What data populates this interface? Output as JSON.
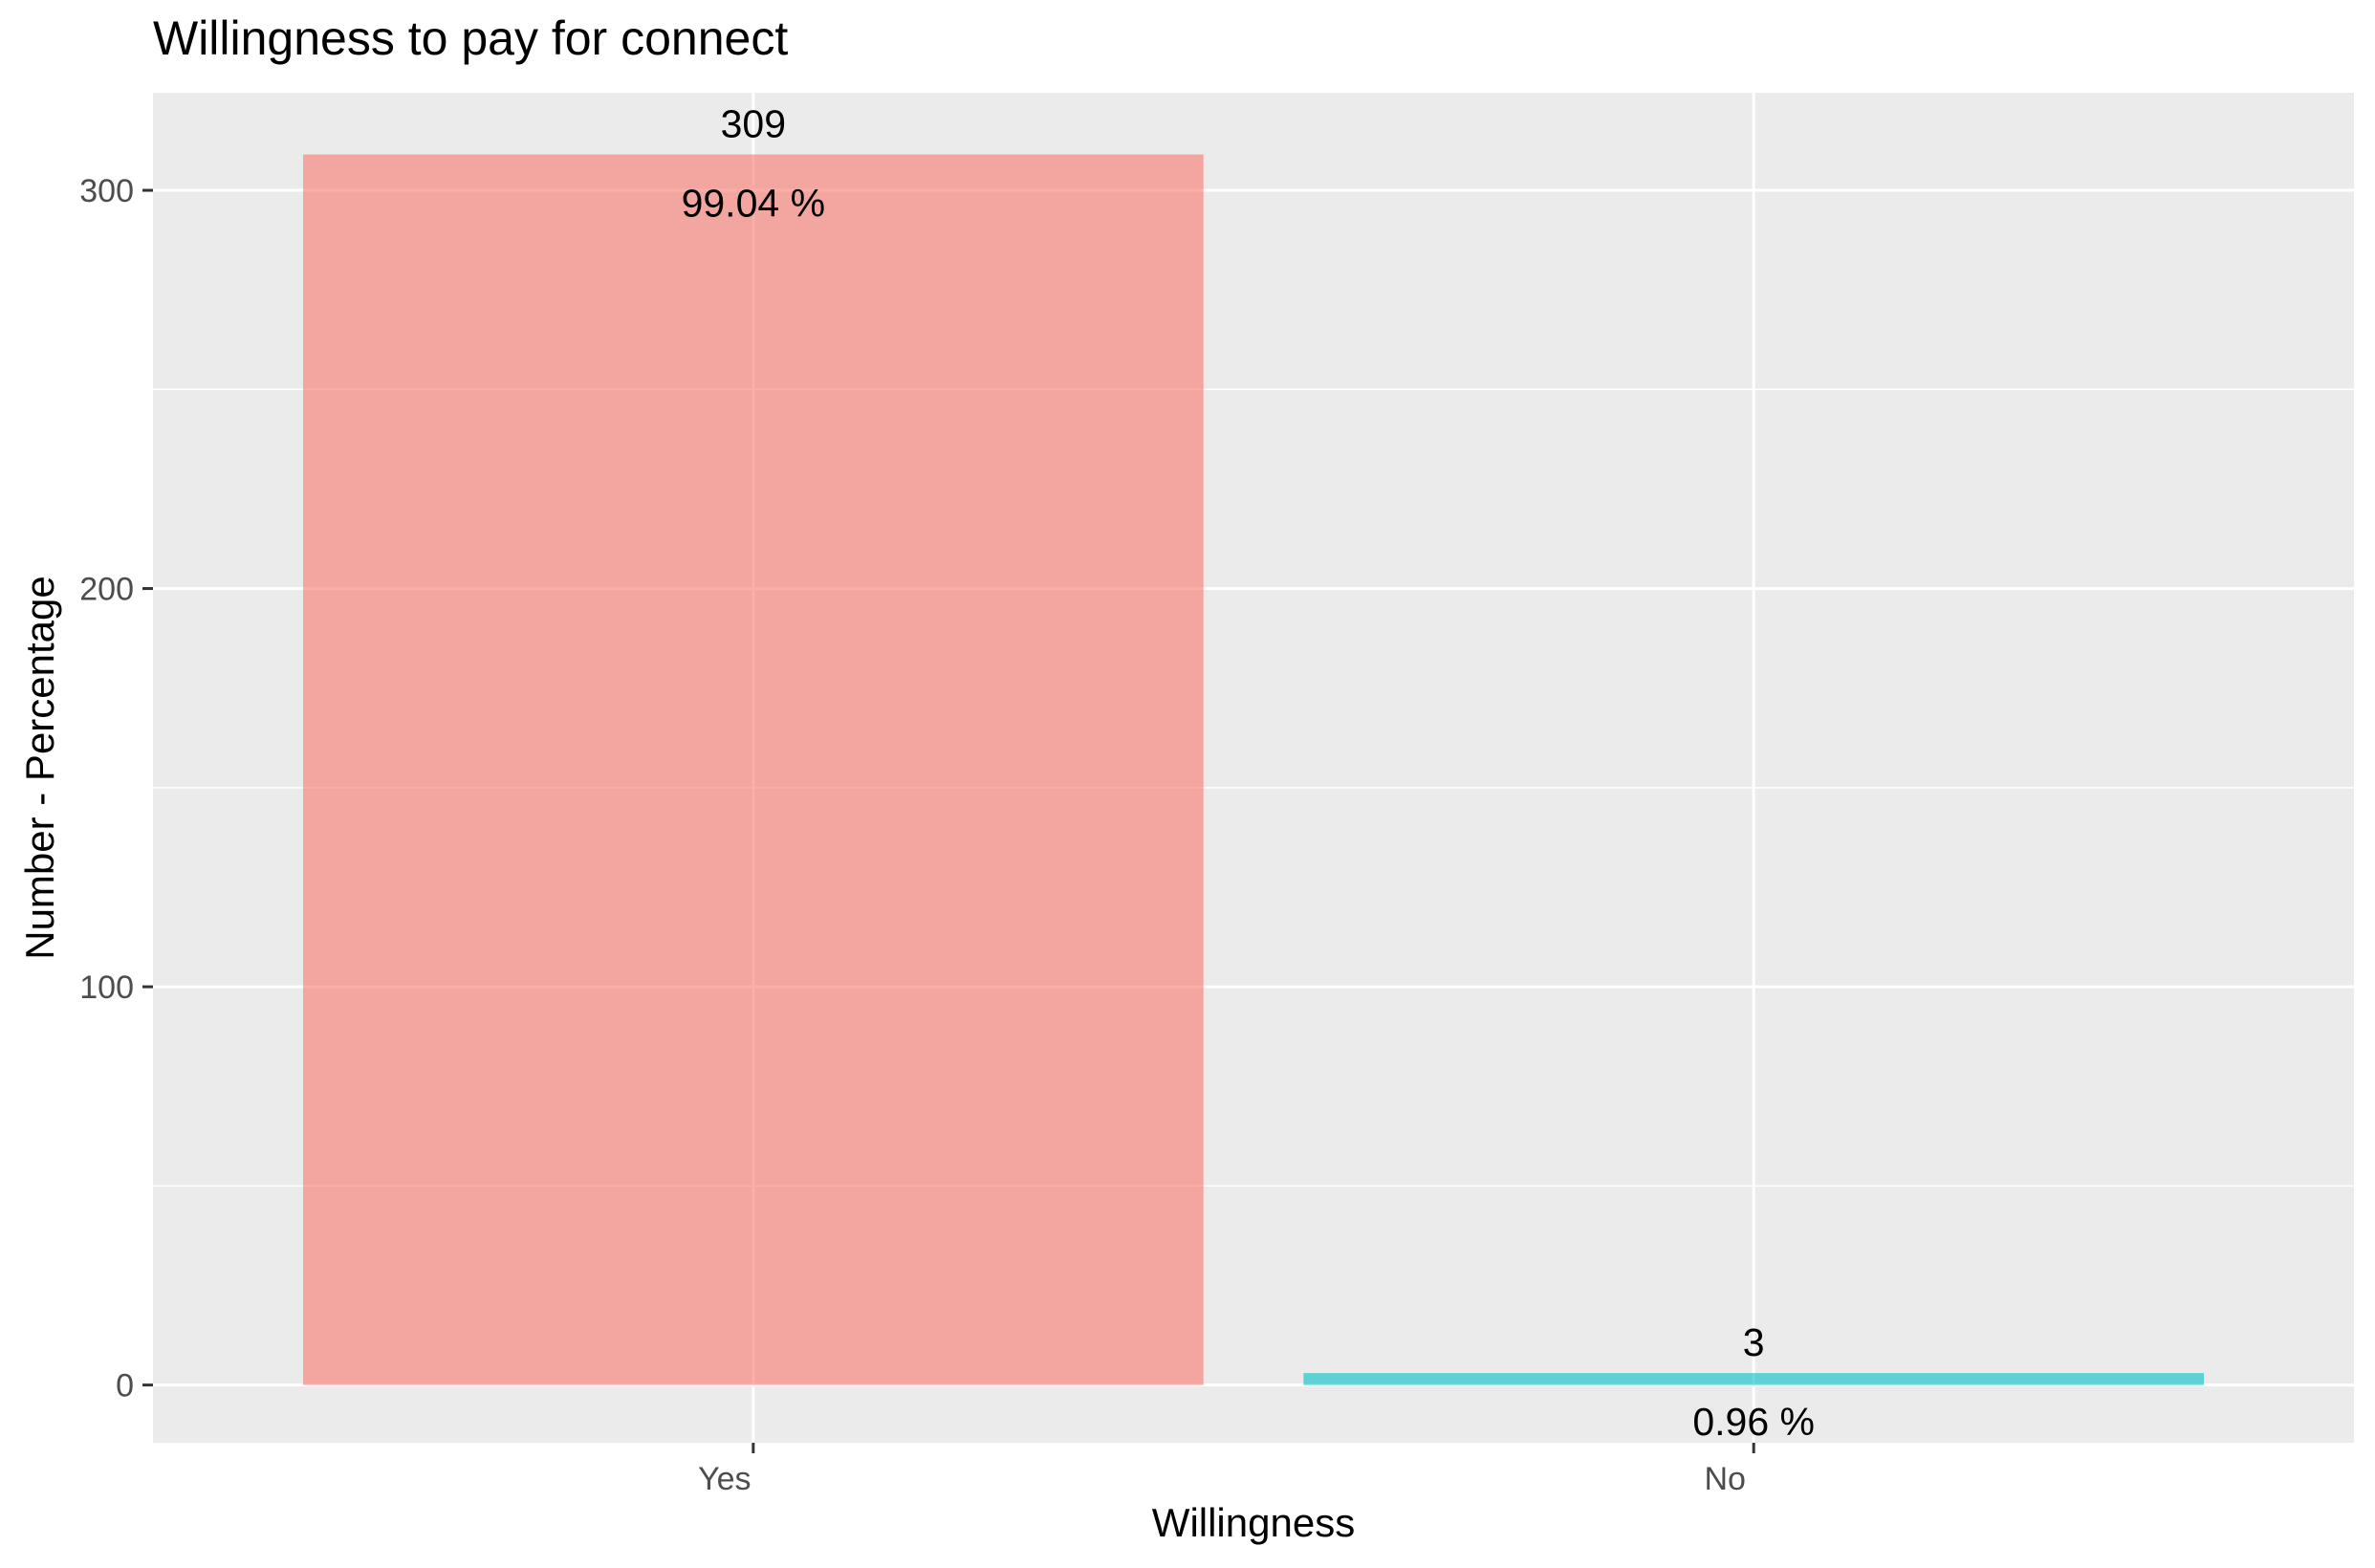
{
  "chart_data": {
    "type": "bar",
    "title": "Willingness to pay for connect",
    "xlabel": "Willingness",
    "ylabel": "Number - Percentage",
    "categories": [
      "Yes",
      "No"
    ],
    "values": [
      309,
      3
    ],
    "count_labels": [
      "309",
      "3"
    ],
    "percent_labels": [
      "99.04 %",
      "0.96 %"
    ],
    "bar_colors": [
      "#F8766D",
      "#00BFC4"
    ],
    "bar_opacity": 0.6,
    "ylim": [
      -14.5,
      324.5
    ],
    "y_ticks": [
      0,
      100,
      200,
      300
    ],
    "y_tick_labels": [
      "0",
      "100",
      "200",
      "300"
    ],
    "y_minor_ticks": [
      50,
      150,
      250
    ],
    "panel_background": "#EBEBEB",
    "grid": true,
    "legend": "none"
  }
}
